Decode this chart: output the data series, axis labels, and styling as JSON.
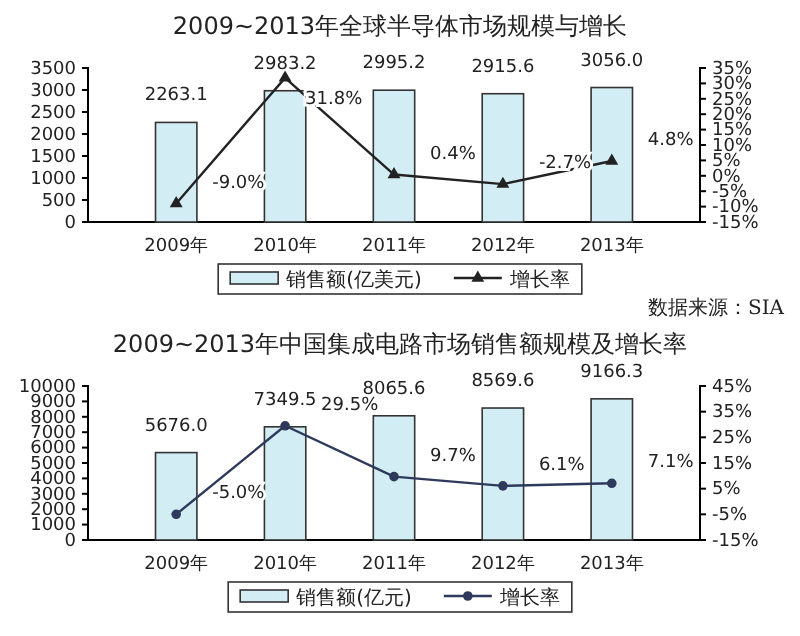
{
  "chart_data": [
    {
      "type": "bar",
      "title": "2009~2013年全球半导体市场规模与增长",
      "categories": [
        "2009年",
        "2010年",
        "2011年",
        "2012年",
        "2013年"
      ],
      "series": [
        {
          "name": "销售额(亿美元)",
          "type": "bar",
          "color": "#d3edf4",
          "values": [
            2263.1,
            2983.2,
            2995.2,
            2915.6,
            3056.0
          ],
          "value_labels": [
            "2263.1",
            "2983.2",
            "2995.2",
            "2915.6",
            "3056.0"
          ]
        },
        {
          "name": "增长率",
          "type": "line",
          "axis": "y2",
          "color": "#222222",
          "marker": "triangle",
          "values": [
            -9.0,
            31.8,
            0.4,
            -2.7,
            4.8
          ],
          "value_labels": [
            "-9.0%",
            "31.8%",
            "0.4%",
            "-2.7%",
            "4.8%"
          ]
        }
      ],
      "ylim": [
        0,
        3500
      ],
      "yticks": [
        0,
        500,
        1000,
        1500,
        2000,
        2500,
        3000,
        3500
      ],
      "y2lim": [
        -15,
        35
      ],
      "y2ticks": [
        {
          "value": -15,
          "label": "-15%"
        },
        {
          "value": -10,
          "label": "-10%"
        },
        {
          "value": -5,
          "label": "-5%"
        },
        {
          "value": 0,
          "label": "0%"
        },
        {
          "value": 5,
          "label": "5%"
        },
        {
          "value": 10,
          "label": "10%"
        },
        {
          "value": 15,
          "label": "15%"
        },
        {
          "value": 20,
          "label": "20%"
        },
        {
          "value": 25,
          "label": "25%"
        },
        {
          "value": 30,
          "label": "30%"
        },
        {
          "value": 35,
          "label": "35%"
        }
      ],
      "legend": "bottom",
      "annotations": [
        "数据来源：SIA"
      ]
    },
    {
      "type": "bar",
      "title": "2009~2013年中国集成电路市场销售额规模及增长率",
      "categories": [
        "2009年",
        "2010年",
        "2011年",
        "2012年",
        "2013年"
      ],
      "series": [
        {
          "name": "销售额(亿元)",
          "type": "bar",
          "color": "#d3edf4",
          "values": [
            5676.0,
            7349.5,
            8065.6,
            8569.6,
            9166.3
          ],
          "value_labels": [
            "5676.0",
            "7349.5",
            "8065.6",
            "8569.6",
            "9166.3"
          ]
        },
        {
          "name": "增长率",
          "type": "line",
          "axis": "y2",
          "color": "#2e3a5c",
          "marker": "circle",
          "values": [
            -5.0,
            29.5,
            9.7,
            6.1,
            7.1
          ],
          "value_labels": [
            "-5.0%",
            "29.5%",
            "9.7%",
            "6.1%",
            "7.1%"
          ]
        }
      ],
      "ylim": [
        0,
        10000
      ],
      "yticks": [
        0,
        1000,
        2000,
        3000,
        4000,
        5000,
        6000,
        7000,
        8000,
        9000,
        10000
      ],
      "y2lim": [
        -15,
        45
      ],
      "y2ticks": [
        {
          "value": -15,
          "label": "-15%"
        },
        {
          "value": -5,
          "label": "-5%"
        },
        {
          "value": 5,
          "label": "5%"
        },
        {
          "value": 15,
          "label": "15%"
        },
        {
          "value": 25,
          "label": "25%"
        },
        {
          "value": 35,
          "label": "35%"
        },
        {
          "value": 45,
          "label": "45%"
        }
      ],
      "legend": "bottom"
    }
  ]
}
